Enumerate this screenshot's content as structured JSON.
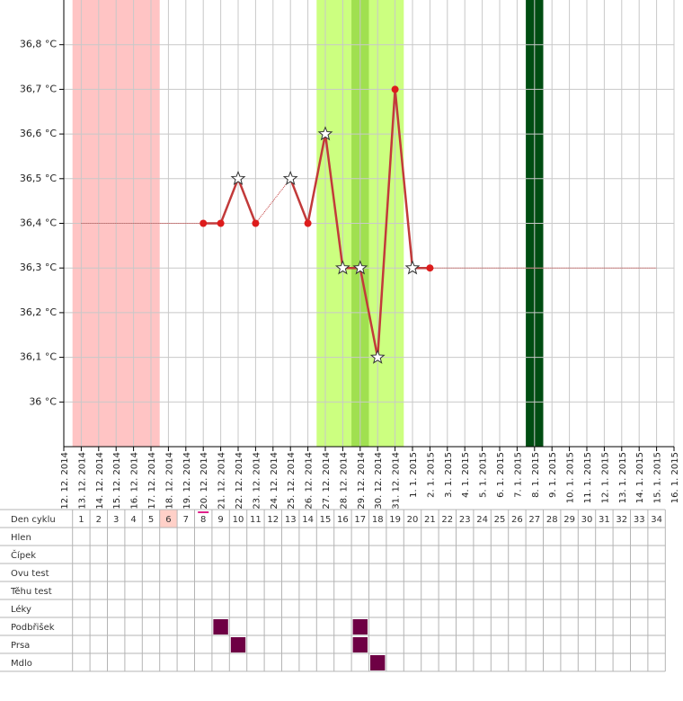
{
  "chart_data": {
    "type": "line",
    "x": [
      "12. 12. 2014",
      "13. 12. 2014",
      "14. 12. 2014",
      "15. 12. 2014",
      "16. 12. 2014",
      "17. 12. 2014",
      "18. 12. 2014",
      "19. 12. 2014",
      "20. 12. 2014",
      "21. 12. 2014",
      "22. 12. 2014",
      "23. 12. 2014",
      "24. 12. 2014",
      "25. 12. 2014",
      "26. 12. 2014",
      "27. 12. 2014",
      "28. 12. 2014",
      "29. 12. 2014",
      "30. 12. 2014",
      "31. 12. 2014",
      "1. 1. 2015",
      "2. 1. 2015",
      "3. 1. 2015",
      "4. 1. 2015",
      "5. 1. 2015",
      "6. 1. 2015",
      "7. 1. 2015",
      "8. 1. 2015",
      "9. 1. 2015",
      "10. 1. 2015",
      "11. 1. 2015",
      "12. 1. 2015",
      "13. 1. 2015",
      "14. 1. 2015",
      "15. 1. 2015",
      "16. 1. 2015"
    ],
    "values": [
      null,
      null,
      null,
      null,
      null,
      null,
      null,
      null,
      36.4,
      36.4,
      36.5,
      36.4,
      null,
      36.5,
      36.4,
      36.6,
      36.3,
      36.3,
      36.1,
      36.7,
      36.3,
      36.3,
      null,
      null,
      null,
      null,
      null,
      null,
      null,
      null,
      null,
      null,
      null,
      null,
      null,
      null
    ],
    "markers": [
      null,
      null,
      null,
      null,
      null,
      null,
      null,
      null,
      "dot",
      "dot",
      "star",
      "dot",
      null,
      "star",
      "dot",
      "star",
      "star",
      "star",
      "star",
      "dot",
      "star",
      "dot",
      null,
      null,
      null,
      null,
      null,
      null,
      null,
      null,
      null,
      null,
      null,
      null,
      null,
      null
    ],
    "color": "#c23a3a",
    "dot_color": "#dd1c1c",
    "ylim": [
      35.9,
      36.9
    ],
    "yticks": [
      {
        "value": 36.0,
        "label": "36 °C"
      },
      {
        "value": 36.1,
        "label": "36,1 °C"
      },
      {
        "value": 36.2,
        "label": "36,2 °C"
      },
      {
        "value": 36.3,
        "label": "36,3 °C"
      },
      {
        "value": 36.4,
        "label": "36,4 °C"
      },
      {
        "value": 36.5,
        "label": "36,5 °C"
      },
      {
        "value": 36.6,
        "label": "36,6 °C"
      },
      {
        "value": 36.7,
        "label": "36,7 °C"
      },
      {
        "value": 36.8,
        "label": "36,8 °C"
      }
    ],
    "grid": true,
    "bands": [
      {
        "from": 1,
        "to": 5,
        "color": "#ffc4c4"
      },
      {
        "from": 15,
        "to": 19,
        "color": "#ccff80"
      },
      {
        "from": 17,
        "to": 17,
        "color": "#a0e050"
      },
      {
        "from": 27,
        "to": 27,
        "color": "#004d12"
      }
    ]
  },
  "table": {
    "header_label": "Den cyklu",
    "days": [
      1,
      2,
      3,
      4,
      5,
      6,
      7,
      8,
      9,
      10,
      11,
      12,
      13,
      14,
      15,
      16,
      17,
      18,
      19,
      20,
      21,
      22,
      23,
      24,
      25,
      26,
      27,
      28,
      29,
      30,
      31,
      32,
      33,
      34
    ],
    "highlight_day": 6,
    "marked_day": 8,
    "fill_color": "#6e0044",
    "rows": [
      {
        "label": "Hlen",
        "days": []
      },
      {
        "label": "Čípek",
        "days": []
      },
      {
        "label": "Ovu test",
        "days": []
      },
      {
        "label": "Těhu test",
        "days": []
      },
      {
        "label": "Léky",
        "days": []
      },
      {
        "label": "Podbřišek",
        "days": [
          9,
          17
        ]
      },
      {
        "label": "Prsa",
        "days": [
          10,
          17
        ]
      },
      {
        "label": "Mdlo",
        "days": [
          18
        ]
      }
    ]
  }
}
